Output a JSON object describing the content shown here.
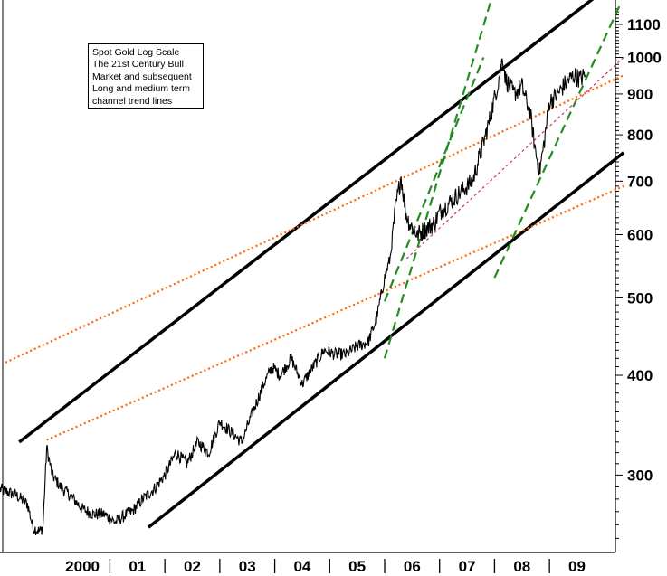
{
  "chart_data": {
    "type": "line",
    "scale": "log",
    "annotation_lines": [
      "Spot Gold Log Scale",
      "The 21st Century Bull",
      "Market and subsequent",
      "Long and medium term",
      "channel trend lines"
    ],
    "y_ticks": [
      300,
      400,
      500,
      600,
      700,
      800,
      900,
      1000,
      1100
    ],
    "y_tick_labels": [
      "300",
      "400",
      "500",
      "600",
      "700",
      "800",
      "900",
      "1000",
      "1100"
    ],
    "x_tick_labels": [
      "2000",
      "01",
      "02",
      "03",
      "04",
      "05",
      "06",
      "07",
      "08",
      "09"
    ],
    "ylim": [
      240,
      1180
    ],
    "xlim": [
      1999.0,
      2010.2
    ],
    "grid": false,
    "series": [
      {
        "color": "#000000",
        "x": [
          1999.0,
          1999.3,
          1999.5,
          1999.6,
          1999.72,
          1999.78,
          1999.85,
          1999.95,
          2000.1,
          2000.3,
          2000.5,
          2000.7,
          2000.9,
          2001.1,
          2001.3,
          2001.4,
          2001.6,
          2001.8,
          2002.0,
          2002.2,
          2002.4,
          2002.6,
          2002.8,
          2003.0,
          2003.2,
          2003.4,
          2003.6,
          2003.8,
          2003.95,
          2004.1,
          2004.3,
          2004.5,
          2004.7,
          2004.9,
          2005.1,
          2005.3,
          2005.5,
          2005.7,
          2005.85,
          2006.0,
          2006.1,
          2006.2,
          2006.3,
          2006.38,
          2006.45,
          2006.6,
          2006.75,
          2006.9,
          2007.0,
          2007.2,
          2007.4,
          2007.6,
          2007.75,
          2007.9,
          2008.05,
          2008.15,
          2008.2,
          2008.35,
          2008.5,
          2008.65,
          2008.75,
          2008.82,
          2008.9,
          2009.0,
          2009.15,
          2009.3,
          2009.45,
          2009.55,
          2009.65
        ],
        "values": [
          288,
          283,
          276,
          258,
          255,
          258,
          325,
          300,
          290,
          282,
          272,
          268,
          268,
          262,
          268,
          270,
          280,
          288,
          300,
          320,
          310,
          330,
          320,
          350,
          340,
          330,
          360,
          390,
          410,
          400,
          420,
          390,
          410,
          430,
          425,
          425,
          435,
          440,
          470,
          530,
          560,
          650,
          710,
          640,
          620,
          600,
          610,
          620,
          640,
          660,
          680,
          700,
          760,
          830,
          920,
          1000,
          940,
          900,
          920,
          850,
          760,
          720,
          780,
          880,
          900,
          930,
          950,
          940,
          950
        ]
      }
    ],
    "trend_lines": [
      {
        "style": "solid",
        "color": "#000000",
        "x": [
          1999.35,
          2009.9
        ],
        "values": [
          330,
          1200
        ]
      },
      {
        "style": "solid",
        "color": "#000000",
        "x": [
          2001.7,
          2010.35
        ],
        "values": [
          258,
          760
        ]
      },
      {
        "style": "dotted",
        "color": "#ff6600",
        "x": [
          1999.1,
          2010.35
        ],
        "values": [
          415,
          950
        ]
      },
      {
        "style": "dotted",
        "color": "#ff6600",
        "x": [
          1999.85,
          2010.35
        ],
        "values": [
          332,
          690
        ]
      },
      {
        "style": "dashed",
        "color": "#228b22",
        "x": [
          2006.0,
          2008.0
        ],
        "values": [
          420,
          1220
        ]
      },
      {
        "style": "dashed",
        "color": "#228b22",
        "x": [
          2006.0,
          2007.8
        ],
        "values": [
          495,
          1000
        ]
      },
      {
        "style": "dashed",
        "color": "#228b22",
        "x": [
          2008.0,
          2010.3
        ],
        "values": [
          530,
          1170
        ]
      },
      {
        "style": "dotted",
        "color": "#cc3366",
        "x": [
          2006.4,
          2010.35
        ],
        "values": [
          560,
          1000
        ]
      }
    ]
  }
}
